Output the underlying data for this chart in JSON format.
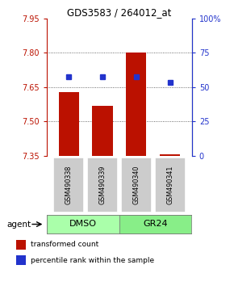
{
  "title": "GDS3583 / 264012_at",
  "samples": [
    "GSM490338",
    "GSM490339",
    "GSM490340",
    "GSM490341"
  ],
  "bar_values": [
    7.63,
    7.57,
    7.8,
    7.356
  ],
  "bar_bottom": 7.35,
  "percentile_values": [
    7.695,
    7.695,
    7.697,
    7.67
  ],
  "ylim": [
    7.35,
    7.95
  ],
  "yticks": [
    7.35,
    7.5,
    7.65,
    7.8,
    7.95
  ],
  "right_yticks": [
    0,
    25,
    50,
    75,
    100
  ],
  "bar_color": "#bb1100",
  "percentile_color": "#2233cc",
  "legend_bar_label": "transformed count",
  "legend_pct_label": "percentile rank within the sample",
  "agent_label": "agent",
  "sample_box_color": "#cccccc",
  "group1_color": "#aaffaa",
  "group2_color": "#88ee88",
  "dotted_gridlines": [
    7.5,
    7.65,
    7.8
  ]
}
